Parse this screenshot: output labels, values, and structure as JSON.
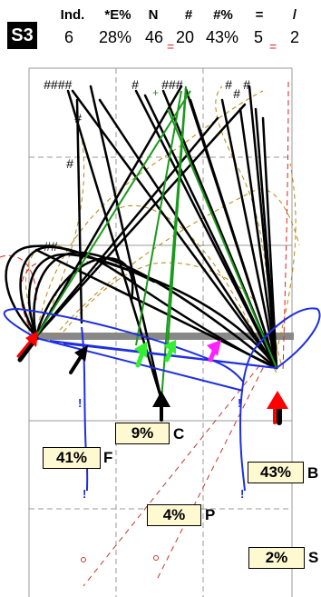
{
  "badge": "S3",
  "stats": {
    "headers": [
      "Ind.",
      "*E%",
      "N",
      "#",
      "#%",
      "=",
      "/"
    ],
    "values": [
      "6",
      "28%",
      "46",
      "20",
      "43%",
      "5",
      "2"
    ]
  },
  "outcomes": [
    {
      "key": "C",
      "pct": "9%"
    },
    {
      "key": "F",
      "pct": "41%"
    },
    {
      "key": "B",
      "pct": "43%"
    },
    {
      "key": "P",
      "pct": "4%"
    },
    {
      "key": "S",
      "pct": "2%"
    }
  ],
  "hash_markers": [
    "####",
    "#",
    "###",
    "#",
    "#",
    "#",
    "#",
    "##",
    "#"
  ],
  "colors": {
    "trajectory": "#000000",
    "green_path": "#1a9a1a",
    "blue_arc": "#1f2fe0",
    "red_dashed": "#e02020",
    "dashed_gold": "#b8860b",
    "grid": "#888888",
    "box_fill": "#fff9d2",
    "arrow_red": "#ff0000",
    "arrow_green": "#33ee33",
    "arrow_magenta": "#ff22ff"
  }
}
